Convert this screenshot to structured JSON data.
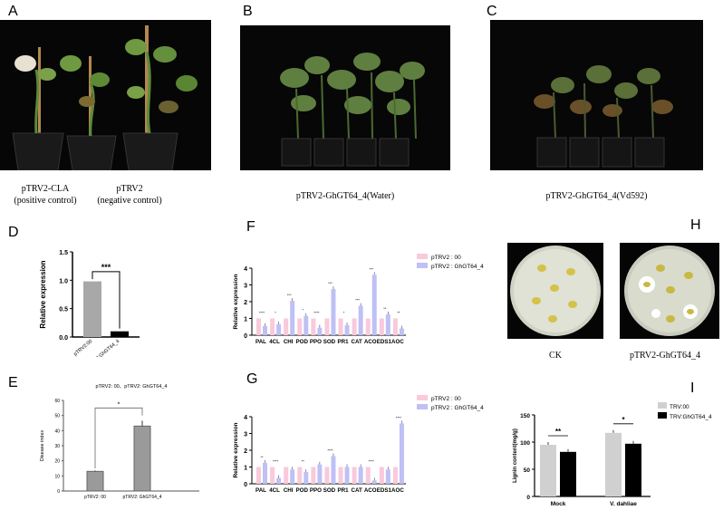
{
  "panel_labels": {
    "A": "A",
    "B": "B",
    "C": "C",
    "D": "D",
    "E": "E",
    "F": "F",
    "G": "G",
    "H": "H",
    "I": "I"
  },
  "photos": {
    "a_caption_left_1": "pTRV2-CLA",
    "a_caption_left_2": "(positive control)",
    "a_caption_right_1": "pTRV2",
    "a_caption_right_2": "(negative control)",
    "b_caption": "pTRV2-GhGT64_4(Water)",
    "c_caption": "pTRV2-GhGT64_4(Vd592)",
    "h_left_caption": "CK",
    "h_right_caption": "pTRV2-GhGT64_4"
  },
  "colors": {
    "pink": "#f9c9dc",
    "lavender": "#bfc0f5",
    "gray": "#a8a8a8",
    "lightgray": "#d0d0d0",
    "black": "#000000"
  },
  "chart_data": [
    {
      "id": "D",
      "type": "bar",
      "ylabel": "Relative expression",
      "categories": [
        "pTRV2:00",
        "pTRV2:GhGT64_4"
      ],
      "values": [
        0.98,
        0.1
      ],
      "ylim": [
        0,
        1.5
      ],
      "yticks": [
        "0.0",
        "0.5",
        "1.0",
        "1.5"
      ],
      "significance": "***"
    },
    {
      "id": "E",
      "type": "bar",
      "title": "pTRV2: 00、pTRV2: GhGT64_4",
      "ylabel": "Disease index",
      "categories": [
        "pTRV2: 00",
        "pTRV2: GhGT64_4"
      ],
      "values": [
        13,
        43
      ],
      "ylim": [
        0,
        60
      ],
      "yticks": [
        "0",
        "10",
        "20",
        "30",
        "40",
        "50",
        "60"
      ],
      "significance": "*"
    },
    {
      "id": "F",
      "type": "bar",
      "ylabel": "Relative expression",
      "categories": [
        "PAL",
        "4CL",
        "CHI",
        "POD",
        "PPO",
        "SOD",
        "PR1",
        "CAT",
        "ACO",
        "EDS1",
        "AOC"
      ],
      "ylim": [
        0,
        4
      ],
      "yticks": [
        "0",
        "1",
        "2",
        "3",
        "4"
      ],
      "series": [
        {
          "name": "pTRV2 : 00",
          "values": [
            1,
            1,
            1,
            1,
            1,
            1,
            1,
            1,
            1,
            1,
            1
          ]
        },
        {
          "name": "pTRV2 : GhGT64_4",
          "values": [
            0.55,
            0.65,
            2.05,
            1.15,
            0.45,
            2.75,
            0.6,
            1.75,
            3.6,
            1.25,
            0.4
          ]
        }
      ],
      "marks": [
        "****",
        "*",
        "***",
        "*",
        "****",
        "***",
        "*",
        "***",
        "***",
        "**",
        "**"
      ]
    },
    {
      "id": "G",
      "type": "bar",
      "ylabel": "Relative expression",
      "categories": [
        "PAL",
        "4CL",
        "CHI",
        "POD",
        "PPO",
        "SOD",
        "PR1",
        "CAT",
        "ACO",
        "EDS1",
        "AOC"
      ],
      "ylim": [
        0,
        4
      ],
      "yticks": [
        "0",
        "1",
        "2",
        "3",
        "4"
      ],
      "series": [
        {
          "name": "pTRV2 : 00",
          "values": [
            1,
            1,
            1,
            1,
            1,
            1,
            1,
            1,
            1,
            1,
            1
          ]
        },
        {
          "name": "pTRV2 : GhGT64_4",
          "values": [
            1.25,
            0.35,
            0.85,
            0.7,
            1.15,
            1.65,
            1.0,
            1.0,
            0.2,
            0.85,
            3.6
          ]
        }
      ],
      "marks": [
        "**",
        "****",
        "",
        "**",
        "",
        "****",
        "",
        "",
        "****",
        "",
        "****"
      ]
    },
    {
      "id": "I",
      "type": "bar",
      "ylabel": "Lignin content(mg/g)",
      "categories": [
        "Mock",
        "V. dahliae"
      ],
      "ylim": [
        0,
        150
      ],
      "yticks": [
        "0",
        "50",
        "100",
        "150"
      ],
      "series": [
        {
          "name": "TRV:00",
          "values": [
            95,
            117
          ]
        },
        {
          "name": "TRV:GhGT64_4",
          "values": [
            82,
            97
          ]
        }
      ],
      "marks": [
        "**",
        "*"
      ]
    }
  ]
}
